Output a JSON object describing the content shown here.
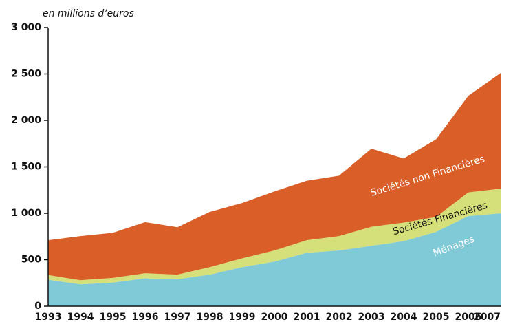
{
  "chart_data": {
    "type": "stacked_area",
    "subtitle": "en millions d’euros",
    "categories": [
      "1993",
      "1994",
      "1995",
      "1996",
      "1997",
      "1998",
      "1999",
      "2000",
      "2001",
      "2002",
      "2003",
      "2004",
      "2005",
      "2006",
      "2007"
    ],
    "series": [
      {
        "name": "Ménages",
        "color": "#80c9d6",
        "values": [
          285,
          235,
          255,
          300,
          290,
          340,
          420,
          480,
          575,
          600,
          650,
          700,
          800,
          970,
          1000
        ]
      },
      {
        "name": "Sociétés Financières",
        "color": "#d5e07a",
        "values": [
          50,
          45,
          50,
          55,
          50,
          80,
          95,
          120,
          135,
          155,
          205,
          200,
          160,
          255,
          265
        ]
      },
      {
        "name": "Sociétés non Financières",
        "color": "#d95e27",
        "values": [
          375,
          475,
          485,
          550,
          510,
          595,
          595,
          635,
          640,
          650,
          840,
          690,
          835,
          1040,
          1245
        ]
      }
    ],
    "ylim": [
      0,
      3000
    ],
    "yticks": [
      0,
      500,
      {
        "value": 1000,
        "label": "1 000"
      },
      {
        "value": 1500,
        "label": "1 500"
      },
      {
        "value": 2000,
        "label": "2 000"
      },
      {
        "value": 2500,
        "label": "2 500"
      },
      {
        "value": 3000,
        "label": "3 000"
      }
    ],
    "grid": false
  }
}
